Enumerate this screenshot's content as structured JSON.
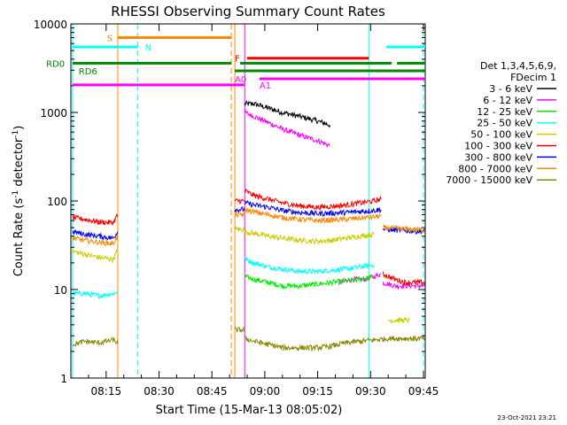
{
  "chart_data": {
    "type": "line",
    "title": "RHESSI Observing Summary Count Rates",
    "xlabel": "Start Time (15-Mar-13 08:05:02)",
    "ylabel_main": "Count Rate (s",
    "ylabel_sup1": "-1",
    "ylabel_mid": " detector",
    "ylabel_sup2": "-1",
    "ylabel_end": ")",
    "x_range_minutes": [
      0,
      100.5
    ],
    "y_range": [
      1,
      10000
    ],
    "y_scale": "log",
    "x_ticks": [
      {
        "min": 10,
        "label": "08:15"
      },
      {
        "min": 25,
        "label": "08:30"
      },
      {
        "min": 40,
        "label": "08:45"
      },
      {
        "min": 55,
        "label": "09:00"
      },
      {
        "min": 70,
        "label": "09:15"
      },
      {
        "min": 85,
        "label": "09:30"
      },
      {
        "min": 100,
        "label": "09:45"
      }
    ],
    "y_ticks": [
      {
        "v": 1,
        "label": "1"
      },
      {
        "v": 10,
        "label": "10"
      },
      {
        "v": 100,
        "label": "100"
      },
      {
        "v": 1000,
        "label": "1000"
      },
      {
        "v": 10000,
        "label": "10000"
      }
    ],
    "legend": {
      "header1": "Det 1,3,4,5,6,9,",
      "header2": "FDecim 1",
      "entries": [
        {
          "label": "3 - 6 keV",
          "color": "#000000"
        },
        {
          "label": "6 - 12 keV",
          "color": "#ff00ff"
        },
        {
          "label": "12 - 25 keV",
          "color": "#00ee00"
        },
        {
          "label": "25 - 50 keV",
          "color": "#00ffff"
        },
        {
          "label": "50 - 100 keV",
          "color": "#cccc00"
        },
        {
          "label": "100 - 300 keV",
          "color": "#ff0000"
        },
        {
          "label": "300 - 800 keV",
          "color": "#0000ff"
        },
        {
          "label": "800 - 7000 keV",
          "color": "#ff8800"
        },
        {
          "label": "7000 - 15000 keV",
          "color": "#888800"
        }
      ]
    },
    "series": [
      {
        "name": "3 - 6 keV",
        "color": "#000000",
        "segments": [
          {
            "x": [
              49.3,
              52,
              55,
              60,
              65,
              70,
              73.5
            ],
            "y": [
              1250,
              1250,
              1150,
              1000,
              900,
              800,
              720
            ]
          }
        ]
      },
      {
        "name": "6 - 12 keV",
        "color": "#ff00ff",
        "segments": [
          {
            "x": [
              49.3,
              52,
              55,
              60,
              65,
              70,
              73.5
            ],
            "y": [
              1000,
              900,
              800,
              650,
              550,
              480,
              420
            ]
          },
          {
            "x": [
              76,
              80,
              83,
              86,
              88
            ],
            "y": [
              12,
              13,
              13,
              14,
              15
            ]
          },
          {
            "x": [
              88.5,
              92,
              96,
              100.5
            ],
            "y": [
              12,
              11,
              11,
              11
            ]
          }
        ]
      },
      {
        "name": "12 - 25 keV",
        "color": "#00ee00",
        "segments": [
          {
            "x": [
              49.3,
              52,
              56,
              60,
              65,
              70,
              74,
              78,
              82,
              86
            ],
            "y": [
              14,
              13,
              12,
              11,
              11,
              11.5,
              12,
              12.5,
              13,
              14
            ]
          }
        ]
      },
      {
        "name": "25 - 50 keV",
        "color": "#00ffff",
        "segments": [
          {
            "x": [
              0.5,
              4,
              8,
              12,
              13.3
            ],
            "y": [
              9,
              9,
              8.5,
              9,
              9.5
            ]
          },
          {
            "x": [
              49.3,
              52,
              56,
              60,
              65,
              70,
              74,
              78,
              82,
              86
            ],
            "y": [
              22,
              20,
              18,
              17,
              16,
              16,
              16.5,
              17,
              18,
              19
            ]
          }
        ]
      },
      {
        "name": "50 - 100 keV",
        "color": "#cccc00",
        "segments": [
          {
            "x": [
              0.5,
              4,
              8,
              12,
              13.3
            ],
            "y": [
              27,
              25,
              23,
              22,
              28
            ]
          },
          {
            "x": [
              46.5,
              48,
              49.3
            ],
            "y": [
              48,
              48,
              48
            ]
          },
          {
            "x": [
              49.3,
              52,
              56,
              60,
              65,
              70,
              74,
              78,
              82,
              86
            ],
            "y": [
              45,
              43,
              40,
              38,
              36,
              35,
              36,
              38,
              40,
              42
            ]
          },
          {
            "x": [
              90,
              93,
              96
            ],
            "y": [
              4.5,
              4.5,
              4.5
            ]
          }
        ]
      },
      {
        "name": "100 - 300 keV",
        "color": "#ff0000",
        "segments": [
          {
            "x": [
              0.5,
              4,
              8,
              12,
              13.3
            ],
            "y": [
              65,
              62,
              58,
              57,
              70
            ]
          },
          {
            "x": [
              46.5,
              48,
              49.3
            ],
            "y": [
              100,
              100,
              100
            ]
          },
          {
            "x": [
              49.3,
              52,
              56,
              60,
              65,
              70,
              74,
              78,
              82,
              86,
              88
            ],
            "y": [
              130,
              115,
              105,
              95,
              88,
              85,
              87,
              90,
              95,
              100,
              105
            ]
          },
          {
            "x": [
              88.5,
              92,
              95,
              98,
              100.5
            ],
            "y": [
              15,
              13,
              12,
              12,
              12
            ]
          }
        ]
      },
      {
        "name": "300 - 800 keV",
        "color": "#0000ff",
        "segments": [
          {
            "x": [
              0.5,
              4,
              8,
              12,
              13.3
            ],
            "y": [
              45,
              42,
              40,
              38,
              45
            ]
          },
          {
            "x": [
              46.5,
              48,
              49.3
            ],
            "y": [
              80,
              80,
              80
            ]
          },
          {
            "x": [
              49.3,
              52,
              56,
              60,
              65,
              70,
              74,
              78,
              82,
              86,
              88
            ],
            "y": [
              95,
              90,
              85,
              78,
              74,
              72,
              73,
              74,
              76,
              78,
              80
            ]
          },
          {
            "x": [
              88.5,
              92,
              96,
              100.5
            ],
            "y": [
              48,
              47,
              46,
              45
            ]
          }
        ]
      },
      {
        "name": "800 - 7000 keV",
        "color": "#ff8800",
        "segments": [
          {
            "x": [
              0.5,
              4,
              8,
              12,
              13.3
            ],
            "y": [
              38,
              36,
              34,
              33,
              40
            ]
          },
          {
            "x": [
              46.5,
              48,
              49.3
            ],
            "y": [
              70,
              70,
              70
            ]
          },
          {
            "x": [
              49.3,
              52,
              56,
              60,
              65,
              70,
              74,
              78,
              82,
              86,
              88
            ],
            "y": [
              80,
              75,
              70,
              65,
              62,
              60,
              61,
              62,
              64,
              66,
              68
            ]
          },
          {
            "x": [
              88.5,
              92,
              96,
              100.5
            ],
            "y": [
              50,
              49,
              48,
              47
            ]
          }
        ]
      },
      {
        "name": "7000 - 15000 keV",
        "color": "#888800",
        "segments": [
          {
            "x": [
              0.5,
              4,
              8,
              12,
              13.3
            ],
            "y": [
              2.4,
              2.6,
              2.5,
              2.7,
              2.5
            ]
          },
          {
            "x": [
              46.5,
              48,
              49.3
            ],
            "y": [
              3.5,
              3.5,
              3.5
            ]
          },
          {
            "x": [
              49.3,
              52,
              56,
              60,
              65,
              70,
              74,
              78,
              82,
              86,
              90,
              95,
              100.5
            ],
            "y": [
              2.8,
              2.6,
              2.4,
              2.2,
              2.2,
              2.2,
              2.3,
              2.5,
              2.6,
              2.7,
              2.8,
              2.8,
              2.8
            ]
          }
        ]
      }
    ],
    "flag_bars": [
      {
        "label": "S",
        "color": "#ff8800",
        "y": 7000,
        "x0": 13.3,
        "x1": 45.5,
        "label_x": 10.2
      },
      {
        "label": "N",
        "color": "#00ffff",
        "y": 5500,
        "x0": 0.5,
        "x1": 19,
        "label_x": 21
      },
      {
        "label": "N",
        "color": "#00ffff",
        "y": 5500,
        "x0": 89.5,
        "x1": 100.5,
        "label_x": null
      },
      {
        "label": "F",
        "color": "#ff0000",
        "y": 4100,
        "x0": 50,
        "x1": 84.5,
        "label_x": 46.5
      },
      {
        "label": "RD0",
        "color": "#008800",
        "y": 3600,
        "x0": 0.5,
        "x1": 45.5,
        "label_x": -7
      },
      {
        "label": "RD0",
        "color": "#008800",
        "y": 3600,
        "x0": 48,
        "x1": 91,
        "label_x": null
      },
      {
        "label": "RD0",
        "color": "#008800",
        "y": 3600,
        "x0": 92.5,
        "x1": 100.5,
        "label_x": null
      },
      {
        "label": "RD6",
        "color": "#008800",
        "y": 2950,
        "x0": 46.5,
        "x1": 91.3,
        "label_x": 2.2
      },
      {
        "label": "RD6",
        "color": "#008800",
        "y": 2950,
        "x0": 91.3,
        "x1": 100.5,
        "label_x": null
      },
      {
        "label": "A0",
        "color": "#ff00ff",
        "y": 2400,
        "x0": 53.5,
        "x1": 100.5,
        "label_x": 46.5
      },
      {
        "label": "A1",
        "color": "#ff00ff",
        "y": 2050,
        "x0": 0.5,
        "x1": 49.3,
        "label_x": 53.5
      }
    ],
    "vlines": [
      {
        "x": 13.3,
        "color": "#ff8800",
        "dash": false
      },
      {
        "x": 19.0,
        "color": "#00ffff",
        "dash": true
      },
      {
        "x": 45.5,
        "color": "#ff8800",
        "dash": true
      },
      {
        "x": 46.5,
        "color": "#ff8800",
        "dash": false
      },
      {
        "x": 49.3,
        "color": "#ff00ff",
        "dash": false
      },
      {
        "x": 0.5,
        "color": "#00ffff",
        "dash": false
      },
      {
        "x": 84.5,
        "color": "#00ffff",
        "dash": false
      },
      {
        "x": 100.0,
        "color": "#00ffff",
        "dash": true
      }
    ],
    "footer_date": "23-Oct-2021 23:21"
  }
}
